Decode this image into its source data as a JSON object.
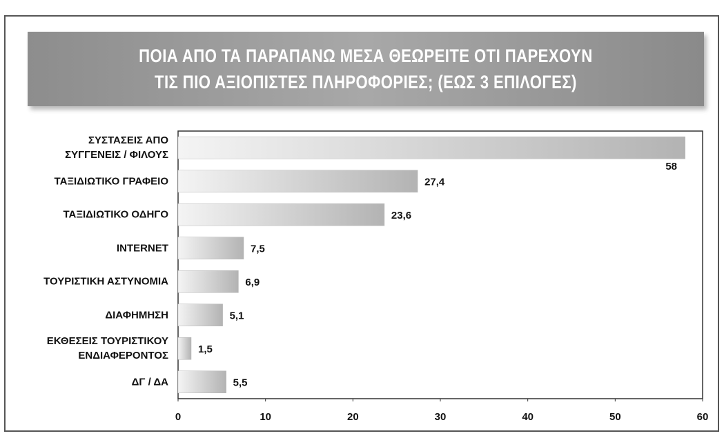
{
  "chart_data": {
    "type": "bar",
    "orientation": "horizontal",
    "title": "ΠΟΙΑ ΑΠΟ ΤΑ ΠΑΡΑΠΑΝΩ ΜΕΣΑ ΘΕΩΡΕΙΤΕ ΟΤΙ ΠΑΡΕΧΟΥΝ\nΤΙΣ ΠΙΟ ΑΞΙΟΠΙΣΤΕΣ ΠΛΗΡΟΦΟΡΙΕΣ; (ΕΩΣ 3 ΕΠΙΛΟΓΕΣ)",
    "categories": [
      "ΣΥΣΤΑΣΕΙΣ ΑΠΟ\nΣΥΓΓΕΝΕΙΣ / ΦΙΛΟΥΣ",
      "ΤΑΞΙΔΙΩΤΙΚΟ ΓΡΑΦΕΙΟ",
      "ΤΑΞΙΔΙΩΤΙΚΟ ΟΔΗΓΟ",
      "INTERNET",
      "ΤΟΥΡΙΣΤΙΚΗ ΑΣΤΥΝΟΜΙΑ",
      "ΔΙΑΦΗΜΗΣΗ",
      "ΕΚΘΕΣΕΙΣ ΤΟΥΡΙΣΤΙΚΟΥ\nΕΝΔΙΑΦΕΡΟΝΤΟΣ",
      "ΔΓ / ΔΑ"
    ],
    "values": [
      58,
      27.4,
      23.6,
      7.5,
      6.9,
      5.1,
      1.5,
      5.5
    ],
    "value_labels": [
      "58",
      "27,4",
      "23,6",
      "7,5",
      "6,9",
      "5,1",
      "1,5",
      "5,5"
    ],
    "color": "#b5b5b5",
    "xlim": [
      0,
      60
    ],
    "xticks": [
      0,
      10,
      20,
      30,
      40,
      50,
      60
    ],
    "grid": false
  }
}
